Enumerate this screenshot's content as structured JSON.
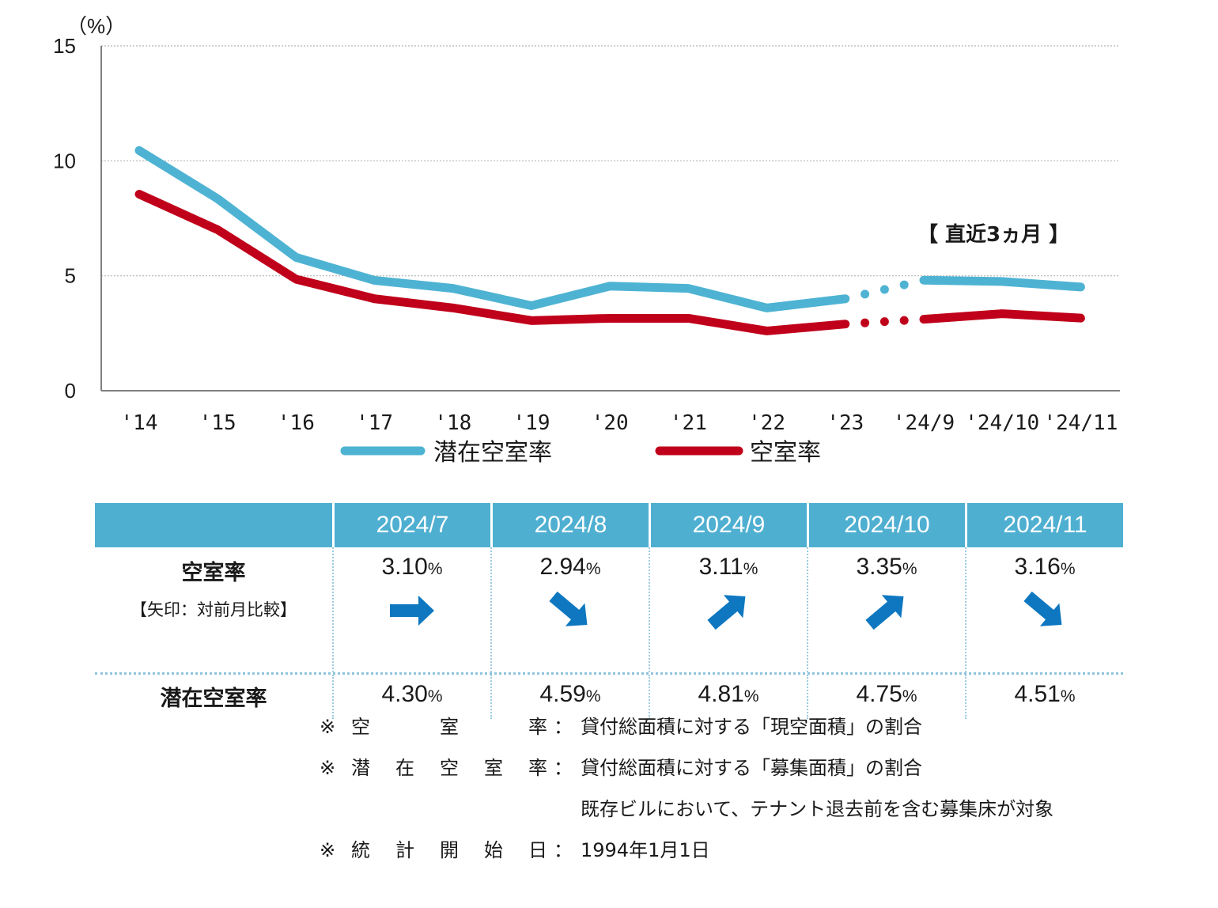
{
  "chart_data": {
    "type": "line",
    "y_unit": "（%）",
    "ylim": [
      0,
      15
    ],
    "yticks": [
      "0",
      "5",
      "10",
      "15"
    ],
    "categories": [
      "'14",
      "'15",
      "'16",
      "'17",
      "'18",
      "'19",
      "'20",
      "'21",
      "'22",
      "'23",
      "'24/9",
      "'24/10",
      "'24/11"
    ],
    "grid": "horizontal dotted",
    "annotation": "【 直近3ヵ月 】",
    "series": [
      {
        "name": "潜在空室率",
        "color": "#4eb3d3",
        "values": [
          10.45,
          8.35,
          5.8,
          4.8,
          4.45,
          3.7,
          4.55,
          4.45,
          3.6,
          4.0,
          4.81,
          4.75,
          4.51
        ]
      },
      {
        "name": "空室率",
        "color": "#c0001a",
        "values": [
          8.55,
          7.0,
          4.85,
          4.0,
          3.6,
          3.05,
          3.15,
          3.15,
          2.6,
          2.9,
          3.11,
          3.35,
          3.16
        ]
      }
    ]
  },
  "table": {
    "columns": [
      "2024/7",
      "2024/8",
      "2024/9",
      "2024/10",
      "2024/11"
    ],
    "row1_label": "空室率",
    "row1_sub": "【矢印：対前月比較】",
    "row1_values": [
      "3.10",
      "2.94",
      "3.11",
      "3.35",
      "3.16"
    ],
    "row1_trend": [
      "flat",
      "down",
      "up",
      "up",
      "down"
    ],
    "row2_label": "潜在空室率",
    "row2_values": [
      "4.30",
      "4.59",
      "4.81",
      "4.75",
      "4.51"
    ],
    "unit": "%",
    "arrow_color": "#0e77c0"
  },
  "notes": [
    {
      "key": [
        "空",
        "室",
        "率"
      ],
      "text": "貸付総面積に対する「現空面積」の割合"
    },
    {
      "key": [
        "潜",
        "在",
        "空",
        "室",
        "率"
      ],
      "text": "貸付総面積に対する「募集面積」の割合"
    },
    {
      "key": [],
      "text": "既存ビルにおいて、テナント退去前を含む募集床が対象"
    },
    {
      "key": [
        "統",
        "計",
        "開",
        "始",
        "日"
      ],
      "text": "1994年1月1日"
    }
  ],
  "note_prefix": "※",
  "note_colon": "："
}
